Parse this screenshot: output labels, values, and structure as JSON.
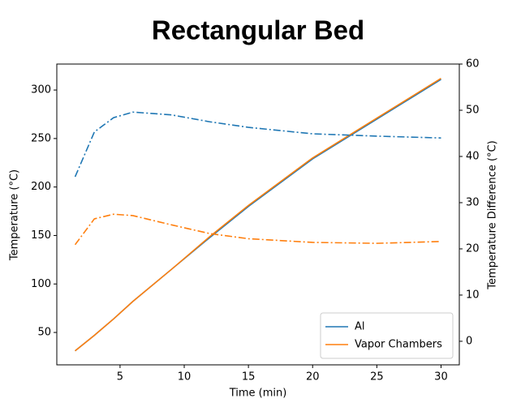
{
  "chart_data": {
    "type": "line",
    "title": "Rectangular Bed",
    "xlabel": "Time (min)",
    "ylabel": "Temperature (°C)",
    "y2label": "Temperature Difference (°C)",
    "x": [
      1.5,
      3,
      4.5,
      6,
      9,
      12,
      15,
      20,
      25,
      30
    ],
    "series": [
      {
        "name": "Al",
        "color": "#1f77b4",
        "linestyle": "solid",
        "values": [
          31,
          47,
          64,
          82,
          115,
          148,
          180,
          229,
          270,
          311
        ]
      },
      {
        "name": "Vapor Chambers",
        "color": "#ff7f0e",
        "linestyle": "solid",
        "values": [
          31,
          47,
          64,
          82,
          115,
          149,
          181,
          230,
          271,
          312
        ]
      },
      {
        "color": "#1f77b4",
        "linestyle": "dashdot",
        "axis": "y2",
        "values": [
          35.6,
          45.3,
          48.4,
          49.6,
          49,
          47.5,
          46.3,
          44.9,
          44.4,
          44
        ]
      },
      {
        "color": "#ff7f0e",
        "linestyle": "dashdot",
        "axis": "y2",
        "values": [
          20.9,
          26.5,
          27.5,
          27.2,
          25.2,
          23.3,
          22.2,
          21.4,
          21.2,
          21.6
        ]
      }
    ],
    "xlim": [
      0.075,
      31.425
    ],
    "xticks": [
      5,
      10,
      15,
      20,
      25,
      30
    ],
    "ylim": [
      16.6,
      326.8
    ],
    "yticks": [
      50,
      100,
      150,
      200,
      250,
      300
    ],
    "y2lim": [
      -5.1,
      60
    ],
    "y2ticks": [
      0,
      10,
      20,
      30,
      40,
      50,
      60
    ],
    "legend": "lower right"
  }
}
